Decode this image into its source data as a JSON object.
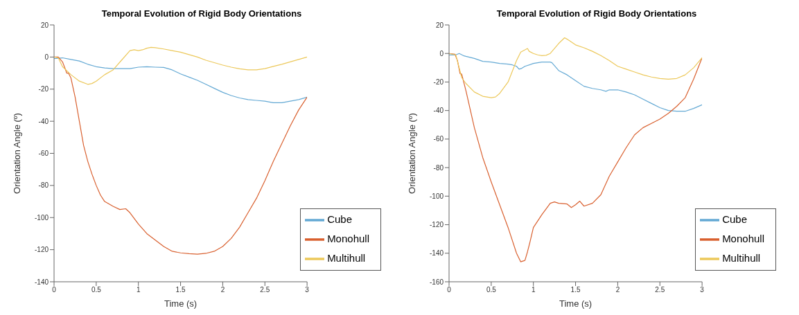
{
  "chart_data": [
    {
      "type": "line",
      "title": "Temporal Evolution of Rigid Body Orientations",
      "xlabel": "Time (s)",
      "ylabel": "Orientation Angle (º)",
      "xlim": [
        0,
        3
      ],
      "xticks": [
        0,
        0.5,
        1,
        1.5,
        2,
        2.5,
        3
      ],
      "ylim": [
        -140,
        20
      ],
      "yticks": [
        -140,
        -120,
        -100,
        -80,
        -60,
        -40,
        -20,
        0,
        20
      ],
      "legend": "bottom right",
      "line_style": "solid",
      "marker": "none",
      "series": [
        {
          "name": "Cube",
          "color": "#64a9d4",
          "x": [
            0,
            0.1,
            0.2,
            0.3,
            0.4,
            0.5,
            0.6,
            0.7,
            0.8,
            0.9,
            1.0,
            1.1,
            1.2,
            1.3,
            1.4,
            1.5,
            1.6,
            1.7,
            1.8,
            1.9,
            2.0,
            2.1,
            2.2,
            2.3,
            2.4,
            2.5,
            2.6,
            2.7,
            2.8,
            2.9,
            3.0
          ],
          "values": [
            -1,
            -0.5,
            -1.5,
            -2.5,
            -4.5,
            -6,
            -6.8,
            -7.2,
            -7.2,
            -7.2,
            -6.3,
            -6,
            -6.3,
            -6.5,
            -8,
            -10.5,
            -12.5,
            -14.5,
            -17,
            -19.5,
            -22,
            -24,
            -25.5,
            -26.5,
            -27,
            -27.5,
            -28.5,
            -28.5,
            -27.5,
            -26.5,
            -25
          ]
        },
        {
          "name": "Monohull",
          "color": "#d9602f",
          "x": [
            0,
            0.05,
            0.1,
            0.13,
            0.15,
            0.17,
            0.2,
            0.25,
            0.3,
            0.35,
            0.4,
            0.45,
            0.5,
            0.55,
            0.6,
            0.7,
            0.78,
            0.85,
            0.9,
            1.0,
            1.1,
            1.2,
            1.3,
            1.4,
            1.5,
            1.6,
            1.7,
            1.8,
            1.9,
            2.0,
            2.1,
            2.2,
            2.3,
            2.4,
            2.5,
            2.6,
            2.7,
            2.8,
            2.9,
            3.0
          ],
          "values": [
            0,
            0,
            -3,
            -7,
            -10,
            -10,
            -13,
            -25,
            -40,
            -55,
            -65,
            -73,
            -80,
            -86,
            -90,
            -93,
            -95,
            -94.5,
            -97,
            -104,
            -110,
            -114,
            -118,
            -121,
            -122,
            -122.5,
            -122.8,
            -122.3,
            -121,
            -118,
            -113,
            -106,
            -97,
            -88,
            -77,
            -65,
            -54,
            -43,
            -33,
            -25
          ]
        },
        {
          "name": "Multihull",
          "color": "#ecc85a",
          "x": [
            0,
            0.05,
            0.1,
            0.2,
            0.3,
            0.4,
            0.45,
            0.5,
            0.6,
            0.7,
            0.8,
            0.9,
            0.95,
            1.0,
            1.05,
            1.1,
            1.15,
            1.2,
            1.3,
            1.4,
            1.5,
            1.6,
            1.7,
            1.8,
            1.9,
            2.0,
            2.1,
            2.2,
            2.3,
            2.4,
            2.5,
            2.6,
            2.7,
            2.8,
            2.9,
            3.0
          ],
          "values": [
            0,
            -0.5,
            -6,
            -11,
            -15,
            -17,
            -16.5,
            -15,
            -11,
            -8,
            -2,
            4,
            4.5,
            4,
            4.5,
            5.5,
            6,
            5.8,
            5,
            4,
            3,
            1.5,
            0,
            -2,
            -3.5,
            -5,
            -6.3,
            -7.3,
            -8,
            -8,
            -7.2,
            -5.8,
            -4.5,
            -3,
            -1.5,
            0
          ]
        }
      ]
    },
    {
      "type": "line",
      "title": "Temporal Evolution of Rigid Body Orientations",
      "xlabel": "Time (s)",
      "ylabel": "Orientation Angle (º)",
      "xlim": [
        0,
        3
      ],
      "xticks": [
        0,
        0.5,
        1,
        1.5,
        2,
        2.5,
        3
      ],
      "ylim": [
        -160,
        20
      ],
      "yticks": [
        -160,
        -140,
        -120,
        -100,
        -80,
        -60,
        -40,
        -20,
        0,
        20
      ],
      "legend": "bottom right",
      "line_style": "solid",
      "marker": "none",
      "series": [
        {
          "name": "Cube",
          "color": "#64a9d4",
          "x": [
            0,
            0.08,
            0.12,
            0.17,
            0.2,
            0.3,
            0.4,
            0.5,
            0.6,
            0.7,
            0.75,
            0.8,
            0.83,
            0.86,
            0.9,
            1.0,
            1.1,
            1.2,
            1.22,
            1.3,
            1.4,
            1.5,
            1.6,
            1.7,
            1.8,
            1.86,
            1.9,
            2.0,
            2.1,
            2.2,
            2.3,
            2.4,
            2.5,
            2.6,
            2.7,
            2.8,
            2.9,
            3.0
          ],
          "values": [
            -1,
            -1,
            0,
            -1.5,
            -2,
            -3.5,
            -5.5,
            -6,
            -7,
            -7.5,
            -8,
            -9,
            -11,
            -10.5,
            -9,
            -7,
            -6,
            -6,
            -6.5,
            -12,
            -15,
            -19,
            -23,
            -24.5,
            -25.5,
            -26.5,
            -25.5,
            -25.5,
            -27,
            -29,
            -32,
            -35,
            -38,
            -40,
            -40.5,
            -40.5,
            -38.5,
            -36
          ]
        },
        {
          "name": "Monohull",
          "color": "#d9602f",
          "x": [
            0,
            0.07,
            0.1,
            0.13,
            0.15,
            0.2,
            0.3,
            0.4,
            0.5,
            0.6,
            0.7,
            0.8,
            0.85,
            0.9,
            0.93,
            0.96,
            1.0,
            1.1,
            1.2,
            1.25,
            1.3,
            1.4,
            1.45,
            1.5,
            1.55,
            1.6,
            1.7,
            1.8,
            1.9,
            2.0,
            2.1,
            2.2,
            2.3,
            2.4,
            2.5,
            2.6,
            2.7,
            2.8,
            2.9,
            3.0
          ],
          "values": [
            0,
            -0.5,
            -5,
            -14,
            -14.5,
            -26,
            -52,
            -73,
            -90,
            -106,
            -122,
            -140,
            -146,
            -145,
            -139,
            -132,
            -122,
            -113,
            -105,
            -104,
            -105,
            -105.5,
            -108,
            -106,
            -103.5,
            -107,
            -105,
            -99,
            -86,
            -76,
            -66,
            -57,
            -52,
            -49,
            -46,
            -42,
            -37,
            -31,
            -18,
            -3
          ]
        },
        {
          "name": "Multihull",
          "color": "#ecc85a",
          "x": [
            0,
            0.08,
            0.12,
            0.15,
            0.2,
            0.3,
            0.4,
            0.5,
            0.55,
            0.6,
            0.7,
            0.8,
            0.85,
            0.9,
            0.93,
            0.95,
            1.0,
            1.05,
            1.1,
            1.15,
            1.2,
            1.3,
            1.37,
            1.4,
            1.5,
            1.6,
            1.7,
            1.8,
            1.9,
            2.0,
            2.1,
            2.2,
            2.3,
            2.4,
            2.5,
            2.6,
            2.7,
            2.8,
            2.9,
            3.0
          ],
          "values": [
            0,
            -1,
            -10,
            -17,
            -21,
            -27,
            -30,
            -31,
            -30.5,
            -28,
            -20,
            -5,
            1,
            2.5,
            3.5,
            1.5,
            0,
            -1,
            -1.5,
            -1.3,
            0,
            7,
            11,
            10,
            6,
            4,
            1.5,
            -1.5,
            -5,
            -9,
            -11,
            -13,
            -15,
            -16.5,
            -17.5,
            -18,
            -17.5,
            -15,
            -10,
            -3
          ]
        }
      ]
    }
  ]
}
